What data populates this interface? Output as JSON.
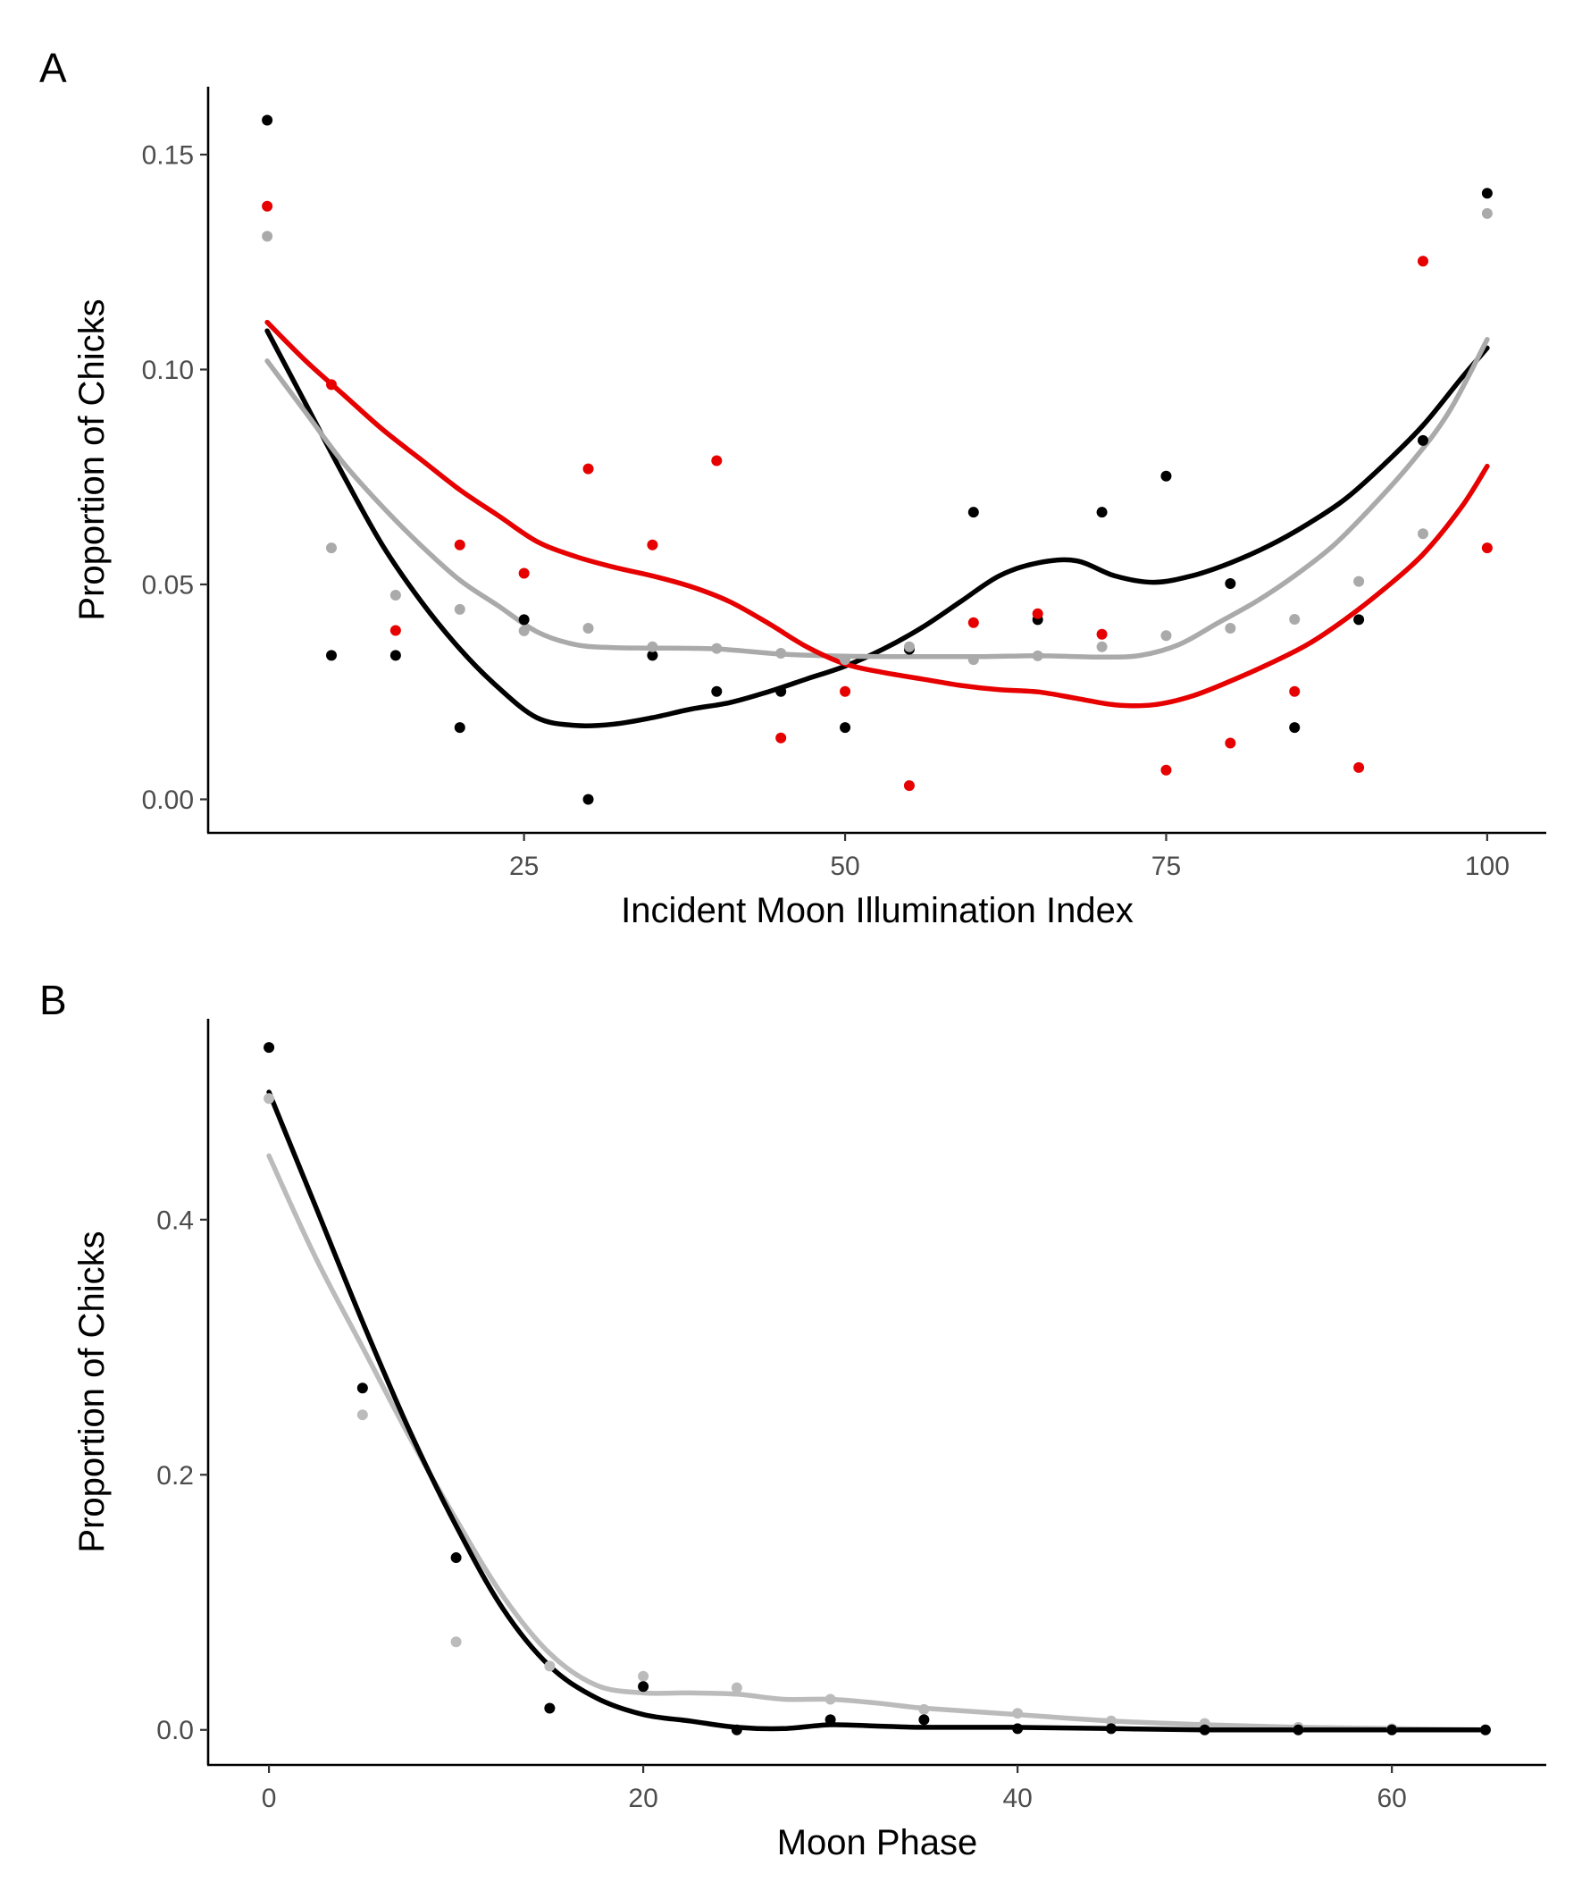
{
  "chart_data": [
    {
      "type": "scatter",
      "panel_label": "A",
      "title": "",
      "xlabel": "Incident Moon Illumination Index",
      "ylabel": "Proportion of Chicks",
      "xlim": [
        0.4,
        104.6
      ],
      "ylim": [
        -0.0078,
        0.1658
      ],
      "x_ticks": [
        25,
        50,
        75,
        100
      ],
      "x_tick_labels": [
        "25",
        "50",
        "75",
        "100"
      ],
      "y_ticks": [
        0,
        0.05,
        0.1,
        0.15
      ],
      "y_tick_labels": [
        "0.00",
        "0.05",
        "0.10",
        "0.15"
      ],
      "grid": false,
      "series": [
        {
          "color": "#000000",
          "x": [
            5,
            10,
            15,
            20,
            25,
            30,
            35,
            40,
            45,
            50,
            55,
            60,
            65,
            70,
            75,
            80,
            85,
            90,
            95,
            100
          ],
          "values": [
            0.158,
            0.0335,
            0.0335,
            0.0167,
            0.0418,
            0.0,
            0.0335,
            0.0251,
            0.0251,
            0.0167,
            0.0349,
            0.0668,
            0.0418,
            0.0668,
            0.0752,
            0.0502,
            0.0167,
            0.0418,
            0.0835,
            0.141
          ],
          "smooth_x": [
            5,
            8,
            11,
            14,
            17,
            20,
            23,
            26,
            29,
            32,
            35,
            38,
            41,
            44,
            47,
            50,
            53,
            56,
            59,
            62,
            65,
            68,
            71,
            74,
            77,
            80,
            83,
            86,
            89,
            92,
            95,
            98,
            100
          ],
          "smooth_y": [
            0.109,
            0.092,
            0.075,
            0.059,
            0.046,
            0.035,
            0.026,
            0.019,
            0.0172,
            0.0175,
            0.019,
            0.021,
            0.0225,
            0.025,
            0.028,
            0.031,
            0.035,
            0.04,
            0.046,
            0.052,
            0.055,
            0.0555,
            0.052,
            0.0505,
            0.052,
            0.055,
            0.059,
            0.064,
            0.07,
            0.078,
            0.087,
            0.098,
            0.105
          ]
        },
        {
          "color": "#aaaaaa",
          "x": [
            5,
            10,
            15,
            20,
            25,
            30,
            35,
            40,
            45,
            50,
            55,
            60,
            65,
            70,
            75,
            80,
            85,
            90,
            95,
            100
          ],
          "values": [
            0.131,
            0.0585,
            0.0475,
            0.0442,
            0.0392,
            0.0398,
            0.0355,
            0.0351,
            0.034,
            0.0325,
            0.0355,
            0.0325,
            0.0334,
            0.0355,
            0.0381,
            0.0398,
            0.0419,
            0.0507,
            0.0618,
            0.1363
          ],
          "smooth_x": [
            5,
            8,
            11,
            14,
            17,
            20,
            23,
            26,
            29,
            32,
            35,
            40,
            45,
            50,
            55,
            60,
            65,
            70,
            73,
            76,
            79,
            82,
            85,
            88,
            91,
            94,
            97,
            100
          ],
          "smooth_y": [
            0.102,
            0.09,
            0.078,
            0.068,
            0.059,
            0.051,
            0.045,
            0.039,
            0.036,
            0.0353,
            0.0352,
            0.035,
            0.0338,
            0.0333,
            0.0332,
            0.0332,
            0.0334,
            0.0331,
            0.0335,
            0.036,
            0.041,
            0.046,
            0.052,
            0.059,
            0.068,
            0.078,
            0.09,
            0.107
          ]
        },
        {
          "color": "#e60000",
          "x": [
            5,
            10,
            15,
            20,
            25,
            30,
            35,
            40,
            45,
            50,
            55,
            60,
            65,
            70,
            75,
            80,
            85,
            90,
            95,
            100
          ],
          "values": [
            0.138,
            0.0965,
            0.0393,
            0.0592,
            0.0526,
            0.0769,
            0.0592,
            0.0788,
            0.0143,
            0.0251,
            0.0032,
            0.0411,
            0.0432,
            0.0384,
            0.0068,
            0.0131,
            0.0251,
            0.0074,
            0.1252,
            0.0585
          ],
          "smooth_x": [
            5,
            8,
            11,
            14,
            17,
            20,
            23,
            26,
            29,
            32,
            35,
            38,
            41,
            44,
            47,
            50,
            53,
            56,
            59,
            62,
            65,
            68,
            71,
            74,
            77,
            80,
            83,
            86,
            89,
            92,
            95,
            98,
            100
          ],
          "smooth_y": [
            0.111,
            0.102,
            0.094,
            0.086,
            0.079,
            0.072,
            0.066,
            0.06,
            0.0565,
            0.054,
            0.052,
            0.0495,
            0.046,
            0.041,
            0.0355,
            0.0315,
            0.0295,
            0.028,
            0.0265,
            0.0255,
            0.025,
            0.0235,
            0.022,
            0.022,
            0.024,
            0.0275,
            0.0315,
            0.036,
            0.042,
            0.049,
            0.057,
            0.068,
            0.0775
          ]
        }
      ]
    },
    {
      "type": "scatter",
      "panel_label": "B",
      "title": "",
      "xlabel": "Moon Phase",
      "ylabel": "Proportion of Chicks",
      "xlim": [
        -3.25,
        68.25
      ],
      "ylim": [
        -0.0275,
        0.5575
      ],
      "x_ticks": [
        0,
        20,
        40,
        60
      ],
      "x_tick_labels": [
        "0",
        "20",
        "40",
        "60"
      ],
      "y_ticks": [
        0,
        0.2,
        0.4
      ],
      "y_tick_labels": [
        "0.0",
        "0.2",
        "0.4"
      ],
      "grid": false,
      "series": [
        {
          "color": "#bbbbbb",
          "x": [
            0,
            5,
            10,
            15,
            20,
            25,
            30,
            35,
            40,
            45,
            50,
            55,
            60,
            65
          ],
          "values": [
            0.495,
            0.247,
            0.069,
            0.05,
            0.042,
            0.033,
            0.024,
            0.016,
            0.013,
            0.007,
            0.005,
            0.002,
            0.001,
            0.0
          ],
          "smooth_x": [
            0,
            2.5,
            5,
            7.5,
            10,
            12.5,
            15,
            17.5,
            20,
            22.5,
            25,
            27.5,
            30,
            32.5,
            35,
            40,
            45,
            50,
            55,
            60,
            65
          ],
          "smooth_y": [
            0.45,
            0.37,
            0.3,
            0.23,
            0.165,
            0.105,
            0.06,
            0.035,
            0.029,
            0.029,
            0.028,
            0.024,
            0.024,
            0.021,
            0.017,
            0.012,
            0.007,
            0.004,
            0.002,
            0.001,
            0.0
          ]
        },
        {
          "color": "#000000",
          "x": [
            0,
            5,
            10,
            15,
            20,
            25,
            30,
            35,
            40,
            45,
            50,
            55,
            60,
            65
          ],
          "values": [
            0.535,
            0.268,
            0.135,
            0.017,
            0.034,
            0.0,
            0.008,
            0.008,
            0.001,
            0.001,
            0.0,
            0.0,
            0.0,
            0.0
          ],
          "smooth_x": [
            0,
            2.5,
            5,
            7.5,
            10,
            12.5,
            15,
            17.5,
            20,
            22.5,
            25,
            27.5,
            30,
            32.5,
            35,
            40,
            45,
            50,
            55,
            60,
            65
          ],
          "smooth_y": [
            0.5,
            0.41,
            0.32,
            0.235,
            0.16,
            0.095,
            0.05,
            0.025,
            0.012,
            0.007,
            0.002,
            0.001,
            0.004,
            0.003,
            0.002,
            0.002,
            0.001,
            0.0,
            0.0,
            0.0,
            0.0
          ]
        }
      ]
    }
  ]
}
